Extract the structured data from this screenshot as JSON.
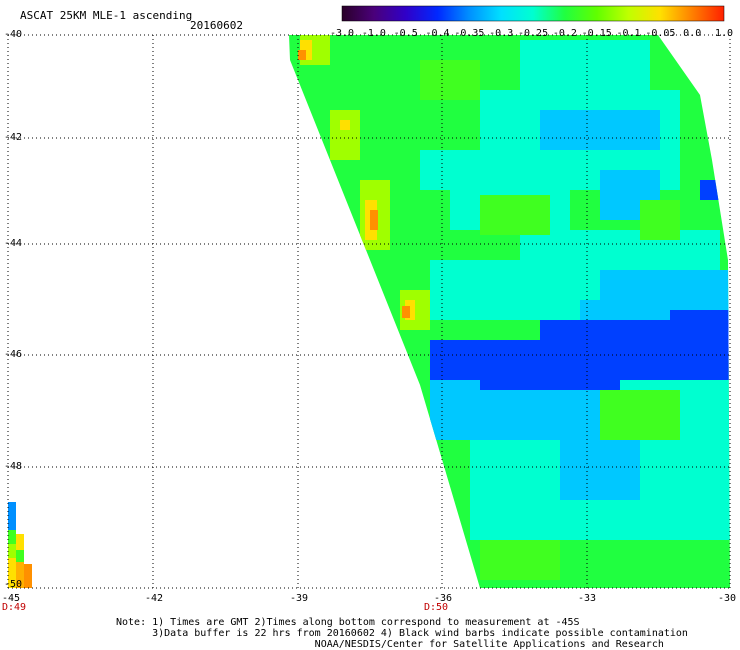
{
  "header": {
    "title": "ASCAT 25KM MLE-1 ascending",
    "date": "20160602"
  },
  "colorbar": {
    "labels": [
      "-3.0",
      "-1.0",
      "-0.5",
      "-0.4",
      "-0.35",
      "-0.3",
      "-0.25",
      "-0.2",
      "-0.15",
      "-0.1",
      "-0.05",
      "0.0",
      "1.0"
    ],
    "colors": [
      "#2a0028",
      "#4a007a",
      "#3000c8",
      "#0028ff",
      "#0090ff",
      "#00e0ff",
      "#00ffd0",
      "#20ff40",
      "#60ff00",
      "#c0ff00",
      "#ffe000",
      "#ff8000",
      "#ff2000"
    ]
  },
  "axes": {
    "lat_labels": [
      "-40",
      "-42",
      "-44",
      "-46",
      "-48",
      "-50"
    ],
    "lon_labels": [
      "-45",
      "-42",
      "-39",
      "-36",
      "-33",
      "-30"
    ]
  },
  "time_labels": [
    "D:49",
    "D:50"
  ],
  "notes": [
    "Note: 1) Times are GMT 2)Times along bottom correspond to measurement at -45S",
    "      3)Data buffer is 22 hrs from 20160602 4) Black wind barbs indicate possible contamination",
    "                                 NOAA/NESDIS/Center for Satellite Applications and Research"
  ]
}
